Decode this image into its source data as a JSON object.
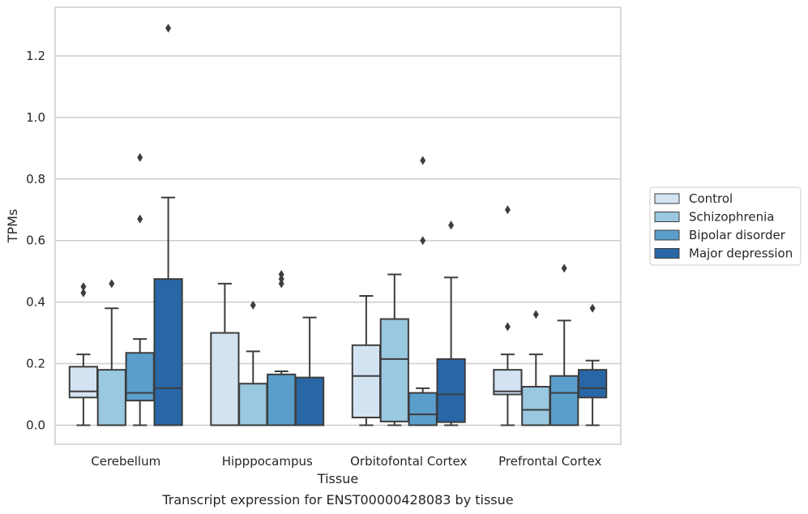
{
  "chart_data": {
    "type": "box",
    "caption": "Transcript expression for ENST00000428083 by tissue",
    "xlabel": "Tissue",
    "ylabel": "TPMs",
    "ylim": [
      -0.062,
      1.358
    ],
    "yticks": [
      0.0,
      0.2,
      0.4,
      0.6,
      0.8,
      1.0,
      1.2
    ],
    "ytick_labels": [
      "0.0",
      "0.2",
      "0.4",
      "0.6",
      "0.8",
      "1.0",
      "1.2"
    ],
    "grid": "horizontal",
    "legend_position": "right",
    "categories": [
      "Cerebellum",
      "Hipppocampus",
      "Orbitofontal Cortex",
      "Prefrontal Cortex"
    ],
    "series": [
      {
        "name": "Control",
        "color": "#d3e3f2",
        "boxes": [
          {
            "whislo": 0.0,
            "q1": 0.09,
            "med": 0.11,
            "q3": 0.19,
            "whishi": 0.23,
            "fliers": [
              0.43,
              0.45
            ]
          },
          {
            "whislo": 0.0,
            "q1": 0.0,
            "med": 0.0,
            "q3": 0.3,
            "whishi": 0.46,
            "fliers": []
          },
          {
            "whislo": 0.0,
            "q1": 0.025,
            "med": 0.16,
            "q3": 0.26,
            "whishi": 0.42,
            "fliers": []
          },
          {
            "whislo": 0.0,
            "q1": 0.1,
            "med": 0.11,
            "q3": 0.18,
            "whishi": 0.23,
            "fliers": [
              0.32,
              0.7
            ]
          }
        ]
      },
      {
        "name": "Schizophrenia",
        "color": "#9ac8e0",
        "boxes": [
          {
            "whislo": 0.0,
            "q1": 0.0,
            "med": 0.0,
            "q3": 0.18,
            "whishi": 0.38,
            "fliers": [
              0.46
            ]
          },
          {
            "whislo": 0.0,
            "q1": 0.0,
            "med": 0.0,
            "q3": 0.135,
            "whishi": 0.24,
            "fliers": [
              0.39
            ]
          },
          {
            "whislo": 0.0,
            "q1": 0.012,
            "med": 0.215,
            "q3": 0.345,
            "whishi": 0.49,
            "fliers": []
          },
          {
            "whislo": 0.0,
            "q1": 0.0,
            "med": 0.05,
            "q3": 0.125,
            "whishi": 0.23,
            "fliers": [
              0.36
            ]
          }
        ]
      },
      {
        "name": "Bipolar disorder",
        "color": "#5a9ecc",
        "boxes": [
          {
            "whislo": 0.0,
            "q1": 0.08,
            "med": 0.105,
            "q3": 0.235,
            "whishi": 0.28,
            "fliers": [
              0.67,
              0.87
            ]
          },
          {
            "whislo": 0.0,
            "q1": 0.0,
            "med": 0.0,
            "q3": 0.165,
            "whishi": 0.175,
            "fliers": [
              0.46,
              0.475,
              0.49
            ]
          },
          {
            "whislo": 0.0,
            "q1": 0.0,
            "med": 0.035,
            "q3": 0.105,
            "whishi": 0.12,
            "fliers": [
              0.6,
              0.86
            ]
          },
          {
            "whislo": 0.0,
            "q1": 0.0,
            "med": 0.105,
            "q3": 0.16,
            "whishi": 0.34,
            "fliers": [
              0.51
            ]
          }
        ]
      },
      {
        "name": "Major depression",
        "color": "#2866a6",
        "boxes": [
          {
            "whislo": 0.0,
            "q1": 0.0,
            "med": 0.12,
            "q3": 0.475,
            "whishi": 0.74,
            "fliers": [
              1.29
            ]
          },
          {
            "whislo": 0.0,
            "q1": 0.0,
            "med": 0.0,
            "q3": 0.155,
            "whishi": 0.35,
            "fliers": []
          },
          {
            "whislo": 0.0,
            "q1": 0.01,
            "med": 0.1,
            "q3": 0.215,
            "whishi": 0.48,
            "fliers": [
              0.65
            ]
          },
          {
            "whislo": 0.0,
            "q1": 0.09,
            "med": 0.12,
            "q3": 0.18,
            "whishi": 0.21,
            "fliers": [
              0.38
            ]
          }
        ]
      }
    ]
  }
}
